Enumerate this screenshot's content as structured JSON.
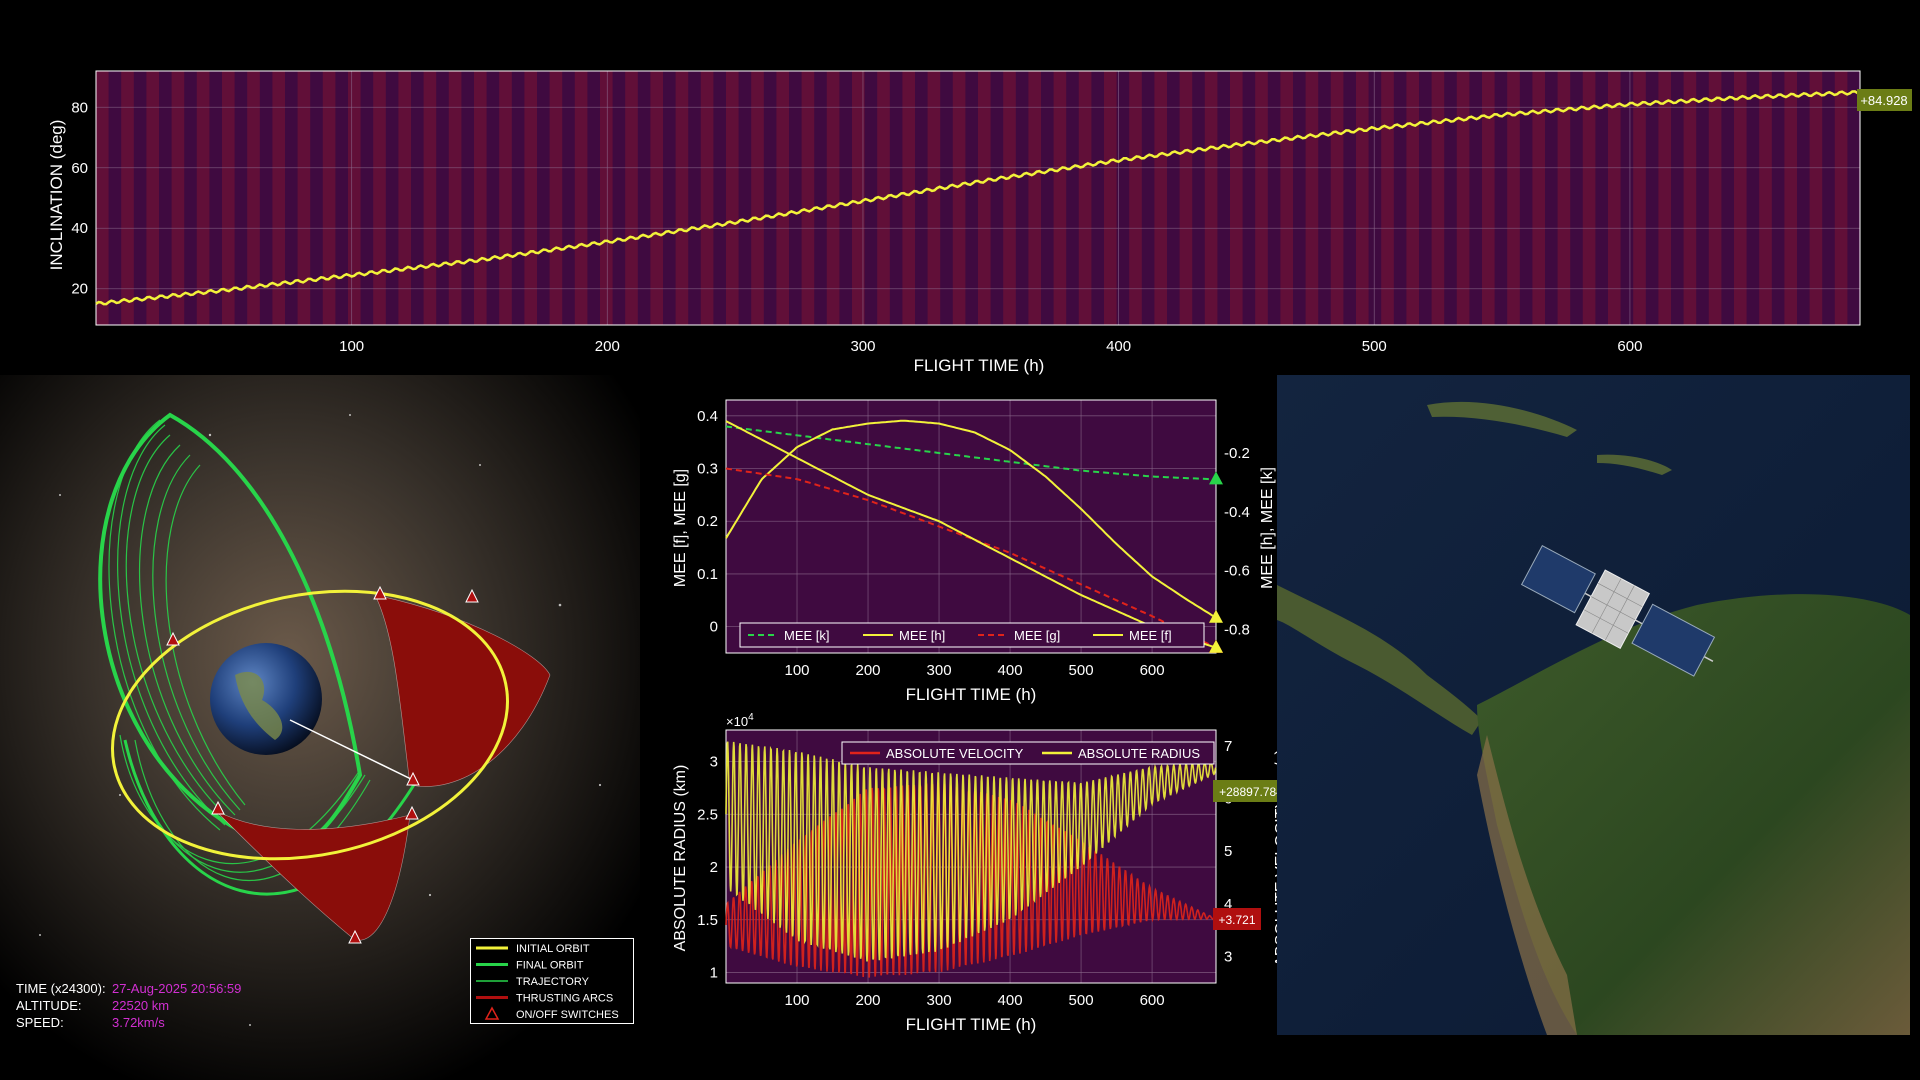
{
  "colors": {
    "plot_bg": "#3f0a40",
    "grid": "#8b6a8c",
    "yellow": "#f2f23a",
    "green": "#28d44a",
    "red": "#e0231a",
    "tag_green": "#6b7d15",
    "tag_red": "#b00f0f",
    "hud_value": "#d22fd2"
  },
  "hud": {
    "time_label": "TIME (x24300):",
    "time_value": "27-Aug-2025 20:56:59",
    "altitude_label": "ALTITUDE:",
    "altitude_value": "22520 km",
    "speed_label": "SPEED:",
    "speed_value": "3.72km/s"
  },
  "orbit_legend": [
    {
      "label": "INITIAL ORBIT",
      "color": "#f2f23a",
      "style": "thick-line"
    },
    {
      "label": "FINAL ORBIT",
      "color": "#28d44a",
      "style": "thick-line"
    },
    {
      "label": "TRAJECTORY",
      "color": "#28d44a",
      "style": "thin-line"
    },
    {
      "label": "THRUSTING ARCS",
      "color": "#b00f0f",
      "style": "thick-line"
    },
    {
      "label": "ON/OFF SWITCHES",
      "color": "#e0231a",
      "style": "triangle-icon"
    }
  ],
  "chart_data": [
    {
      "id": "inclination",
      "type": "line",
      "xlabel": "FLIGHT TIME (h)",
      "ylabel": "INCLINATION (deg)",
      "xlim": [
        0,
        690
      ],
      "ylim": [
        8,
        92
      ],
      "xticks": [
        100,
        200,
        300,
        400,
        500,
        600
      ],
      "yticks": [
        20,
        40,
        60,
        80
      ],
      "thrust_stripes": "on",
      "grid": "on",
      "series": [
        {
          "color": "#f2f23a",
          "x": [
            0,
            50,
            100,
            150,
            200,
            250,
            300,
            350,
            400,
            450,
            500,
            550,
            600,
            650,
            690
          ],
          "y": [
            15,
            19.5,
            24.5,
            29.5,
            35.5,
            42,
            49,
            56,
            62.5,
            68,
            73,
            77.5,
            81,
            83.5,
            84.928
          ]
        }
      ],
      "end_tag": "+84.928"
    },
    {
      "id": "mee",
      "type": "line",
      "xlabel": "FLIGHT TIME (h)",
      "ylabel": "MEE [f], MEE [g]",
      "ylabel_right": "MEE [h], MEE [k]",
      "xlim": [
        0,
        690
      ],
      "ylim": [
        -0.05,
        0.43
      ],
      "ylim_right": [
        -0.88,
        -0.02
      ],
      "xticks": [
        100,
        200,
        300,
        400,
        500,
        600
      ],
      "yticks": [
        0,
        0.1,
        0.2,
        0.3,
        0.4
      ],
      "yticks_right": [
        -0.8,
        -0.6,
        -0.4,
        -0.2
      ],
      "grid": "on",
      "legend_position": "bottom",
      "series": [
        {
          "name": "MEE [k]",
          "axis": "right",
          "color": "#28d44a",
          "dash": "6,4",
          "x": [
            0,
            100,
            200,
            300,
            400,
            500,
            600,
            690
          ],
          "y": [
            -0.11,
            -0.14,
            -0.17,
            -0.2,
            -0.23,
            -0.26,
            -0.28,
            -0.29
          ]
        },
        {
          "name": "MEE [h]",
          "axis": "right",
          "color": "#f2f23a",
          "dash": "",
          "x": [
            0,
            50,
            100,
            150,
            200,
            250,
            300,
            350,
            400,
            450,
            500,
            550,
            600,
            650,
            690
          ],
          "y": [
            -0.49,
            -0.29,
            -0.18,
            -0.12,
            -0.1,
            -0.09,
            -0.1,
            -0.13,
            -0.19,
            -0.28,
            -0.39,
            -0.51,
            -0.62,
            -0.7,
            -0.76
          ]
        },
        {
          "name": "MEE [g]",
          "axis": "left",
          "color": "#e0231a",
          "dash": "6,4",
          "x": [
            0,
            100,
            200,
            300,
            400,
            500,
            600,
            690
          ],
          "y": [
            0.3,
            0.28,
            0.24,
            0.19,
            0.14,
            0.08,
            0.02,
            -0.04
          ]
        },
        {
          "name": "MEE [f]",
          "axis": "left",
          "color": "#f2f23a",
          "dash": "",
          "x": [
            0,
            100,
            200,
            300,
            400,
            500,
            600,
            690
          ],
          "y": [
            0.39,
            0.32,
            0.25,
            0.2,
            0.13,
            0.06,
            0.0,
            -0.04
          ]
        }
      ]
    },
    {
      "id": "velocity_radius",
      "type": "line",
      "xlabel": "FLIGHT TIME (h)",
      "ylabel": "ABSOLUTE RADIUS (km)",
      "ylabel_right": "ABSOLUTE VELOCITY (km/s)",
      "y_exponent": "×10",
      "y_exponent_power": "4",
      "xlim": [
        0,
        690
      ],
      "ylim": [
        0.9,
        3.3
      ],
      "ylim_right": [
        2.5,
        7.3
      ],
      "xticks": [
        100,
        200,
        300,
        400,
        500,
        600
      ],
      "yticks": [
        1,
        1.5,
        2,
        2.5,
        3
      ],
      "yticks_right": [
        3,
        4,
        5,
        6,
        7
      ],
      "grid": "on",
      "legend_position": "top",
      "series": [
        {
          "name": "ABSOLUTE VELOCITY",
          "axis": "right",
          "color": "#e0231a",
          "envelope_x": [
            0,
            100,
            200,
            300,
            400,
            500,
            600,
            690
          ],
          "envelope_low": [
            3.2,
            2.8,
            2.6,
            2.7,
            3.0,
            3.4,
            3.7,
            3.72
          ],
          "envelope_high": [
            4.0,
            5.2,
            6.2,
            6.3,
            6.0,
            5.2,
            4.3,
            3.72
          ]
        },
        {
          "name": "ABSOLUTE RADIUS",
          "axis": "left",
          "color": "#f2f23a",
          "envelope_x": [
            0,
            100,
            200,
            300,
            400,
            500,
            600,
            690
          ],
          "envelope_low": [
            1.8,
            1.3,
            1.1,
            1.2,
            1.5,
            2.0,
            2.6,
            2.89
          ],
          "envelope_high": [
            3.2,
            3.1,
            2.95,
            2.9,
            2.85,
            2.8,
            2.95,
            3.0
          ]
        }
      ],
      "end_tags": {
        "radius": "+28897.784",
        "velocity": "+3.721"
      }
    }
  ]
}
